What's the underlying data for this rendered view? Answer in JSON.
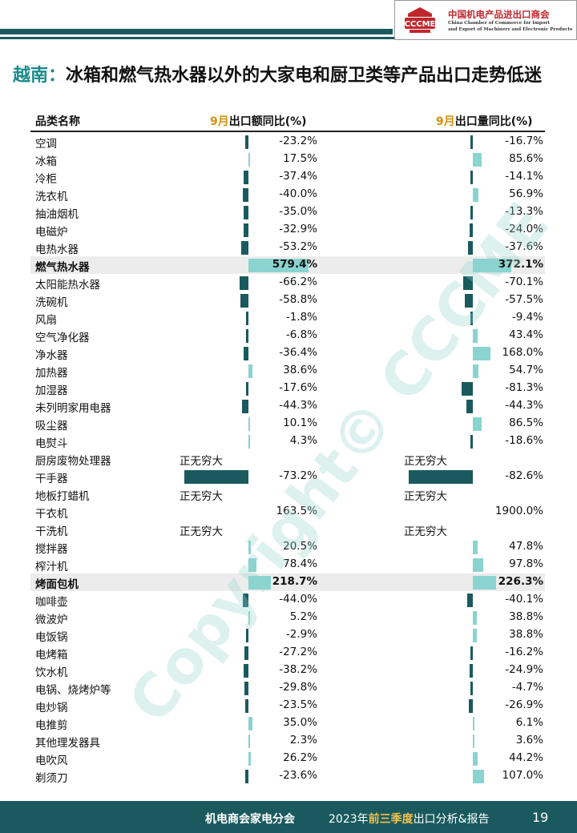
{
  "logo": {
    "badge_text": "CCCME",
    "name_cn": "中国机电产品进出口商会",
    "name_en_line1": "China Chamber of Commerce for Import",
    "name_en_line2": "and Export of Machinery and Electronic Products"
  },
  "title": {
    "country": "越南：",
    "text": "冰箱和燃气热水器以外的大家电和厨卫类等产品出口走势低迷"
  },
  "table": {
    "col_category": "品类名称",
    "col_value_month": "9月",
    "col_value_rest": "出口额同比(%)",
    "col_volume_month": "9月",
    "col_volume_rest": "出口量同比(%)",
    "rows": [
      {
        "name": "空调",
        "v1": "-23.2%",
        "n1": -23.2,
        "v2": "-16.7%",
        "n2": -16.7
      },
      {
        "name": "冰箱",
        "v1": "17.5%",
        "n1": 17.5,
        "v2": "85.6%",
        "n2": 85.6
      },
      {
        "name": "冷柜",
        "v1": "-37.4%",
        "n1": -37.4,
        "v2": "-14.1%",
        "n2": -14.1
      },
      {
        "name": "洗衣机",
        "v1": "-40.0%",
        "n1": -40.0,
        "v2": "56.9%",
        "n2": 56.9
      },
      {
        "name": "抽油烟机",
        "v1": "-35.0%",
        "n1": -35.0,
        "v2": "-13.3%",
        "n2": -13.3
      },
      {
        "name": "电磁炉",
        "v1": "-32.9%",
        "n1": -32.9,
        "v2": "-24.0%",
        "n2": -24.0
      },
      {
        "name": "电热水器",
        "v1": "-53.2%",
        "n1": -53.2,
        "v2": "-37.6%",
        "n2": -37.6
      },
      {
        "name": "燃气热水器",
        "v1": "579.4%",
        "n1": 579.4,
        "v2": "372.1%",
        "n2": 372.1,
        "highlight": true
      },
      {
        "name": "太阳能热水器",
        "v1": "-66.2%",
        "n1": -66.2,
        "v2": "-70.1%",
        "n2": -70.1
      },
      {
        "name": "洗碗机",
        "v1": "-58.8%",
        "n1": -58.8,
        "v2": "-57.5%",
        "n2": -57.5
      },
      {
        "name": "风扇",
        "v1": "-1.8%",
        "n1": -1.8,
        "v2": "-9.4%",
        "n2": -9.4
      },
      {
        "name": "空气净化器",
        "v1": "-6.8%",
        "n1": -6.8,
        "v2": "43.4%",
        "n2": 43.4
      },
      {
        "name": "净水器",
        "v1": "-36.4%",
        "n1": -36.4,
        "v2": "168.0%",
        "n2": 168.0
      },
      {
        "name": "加热器",
        "v1": "38.6%",
        "n1": 38.6,
        "v2": "54.7%",
        "n2": 54.7
      },
      {
        "name": "加湿器",
        "v1": "-17.6%",
        "n1": -17.6,
        "v2": "-81.3%",
        "n2": -81.3
      },
      {
        "name": "未列明家用电器",
        "v1": "-44.3%",
        "n1": -44.3,
        "v2": "-44.3%",
        "n2": -44.3
      },
      {
        "name": "吸尘器",
        "v1": "10.1%",
        "n1": 10.1,
        "v2": "86.5%",
        "n2": 86.5
      },
      {
        "name": "电熨斗",
        "v1": "4.3%",
        "n1": 4.3,
        "v2": "-18.6%",
        "n2": -18.6
      },
      {
        "name": "厨房废物处理器",
        "inf1": "正无穷大",
        "inf2": "正无穷大"
      },
      {
        "name": "干手器",
        "v1": "-73.2%",
        "n1": -73.2,
        "v2": "-82.6%",
        "n2": -82.6,
        "big": true
      },
      {
        "name": "地板打蜡机",
        "inf1": "正无穷大",
        "inf2": "正无穷大"
      },
      {
        "name": "干衣机",
        "v1": "163.5%",
        "v2": "1900.0%"
      },
      {
        "name": "干洗机",
        "inf1": "正无穷大",
        "inf2": "正无穷大"
      },
      {
        "name": "搅拌器",
        "v1": "20.5%",
        "n1": 20.5,
        "v2": "47.8%",
        "n2": 47.8
      },
      {
        "name": "榨汁机",
        "v1": "78.4%",
        "n1": 78.4,
        "v2": "97.8%",
        "n2": 97.8
      },
      {
        "name": "烤面包机",
        "v1": "218.7%",
        "n1": 218.7,
        "v2": "226.3%",
        "n2": 226.3,
        "highlight": true
      },
      {
        "name": "咖啡壶",
        "v1": "-44.0%",
        "n1": -44.0,
        "v2": "-40.1%",
        "n2": -40.1
      },
      {
        "name": "微波炉",
        "v1": "5.2%",
        "n1": 5.2,
        "v2": "38.8%",
        "n2": 38.8
      },
      {
        "name": "电饭锅",
        "v1": "-2.9%",
        "n1": -2.9,
        "v2": "38.8%",
        "n2": 38.8
      },
      {
        "name": "电烤箱",
        "v1": "-27.2%",
        "n1": -27.2,
        "v2": "-16.2%",
        "n2": -16.2
      },
      {
        "name": "饮水机",
        "v1": "-38.2%",
        "n1": -38.2,
        "v2": "-24.9%",
        "n2": -24.9
      },
      {
        "name": "电锅、烧烤炉等",
        "v1": "-29.8%",
        "n1": -29.8,
        "v2": "-4.7%",
        "n2": -4.7
      },
      {
        "name": "电炒锅",
        "v1": "-23.5%",
        "n1": -23.5,
        "v2": "-26.9%",
        "n2": -26.9
      },
      {
        "name": "电推剪",
        "v1": "35.0%",
        "n1": 35.0,
        "v2": "6.1%",
        "n2": 6.1
      },
      {
        "name": "其他理发器具",
        "v1": "2.3%",
        "n1": 2.3,
        "v2": "3.6%",
        "n2": 3.6
      },
      {
        "name": "电吹风",
        "v1": "26.2%",
        "n1": 26.2,
        "v2": "44.2%",
        "n2": 44.2
      },
      {
        "name": "剃须刀",
        "v1": "-23.6%",
        "n1": -23.6,
        "v2": "107.0%",
        "n2": 107.0
      }
    ]
  },
  "watermark": "Copyright© CCCME",
  "footer": {
    "org": "机电商会家电分会",
    "report_pre": "2023年",
    "report_hl": "前三季度",
    "report_post": "出口分析&报告",
    "page": "19"
  },
  "colors": {
    "negative_bar": "#1a5a5e",
    "positive_bar": "#8ad3d0",
    "accent": "#1a8a8a",
    "month": "#d4900e"
  }
}
